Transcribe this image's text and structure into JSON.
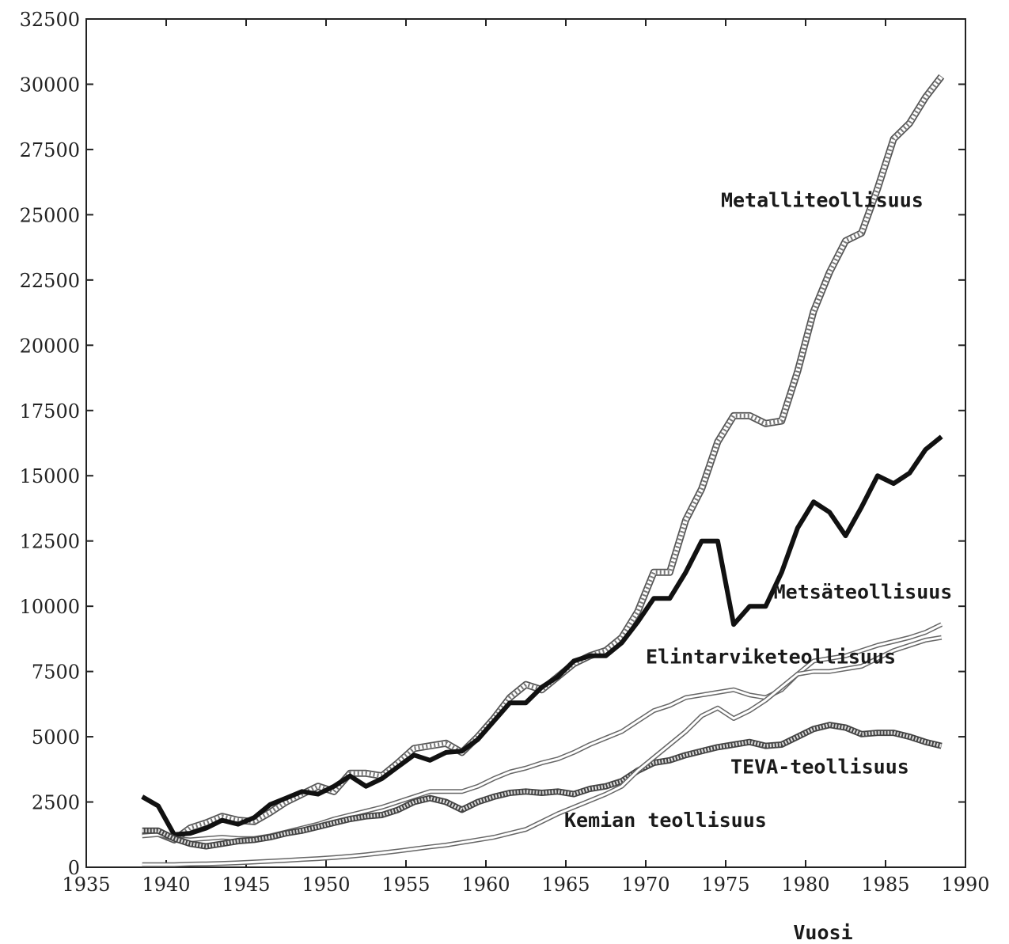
{
  "chart_data": {
    "type": "line",
    "xlabel": "Vuosi",
    "ylabel": "",
    "xlim": [
      1935,
      1990
    ],
    "ylim": [
      0,
      32500
    ],
    "x_ticks": [
      1935,
      1940,
      1945,
      1950,
      1955,
      1960,
      1965,
      1970,
      1975,
      1980,
      1985,
      1990
    ],
    "y_ticks": [
      0,
      2500,
      5000,
      7500,
      10000,
      12500,
      15000,
      17500,
      20000,
      22500,
      25000,
      27500,
      30000,
      32500
    ],
    "grid": false,
    "series": [
      {
        "name": "Metalliteollisuus",
        "style": "hatched",
        "color": "#888888",
        "points": [
          [
            1938.5,
            1350
          ],
          [
            1939.5,
            1300
          ],
          [
            1940.5,
            1050
          ],
          [
            1941.5,
            1500
          ],
          [
            1942.5,
            1700
          ],
          [
            1943.5,
            1950
          ],
          [
            1944.5,
            1800
          ],
          [
            1945.5,
            1750
          ],
          [
            1946.5,
            2100
          ],
          [
            1947.5,
            2500
          ],
          [
            1948.5,
            2800
          ],
          [
            1949.5,
            3100
          ],
          [
            1950.5,
            2900
          ],
          [
            1951.5,
            3600
          ],
          [
            1952.5,
            3600
          ],
          [
            1953.5,
            3500
          ],
          [
            1954.5,
            4000
          ],
          [
            1955.5,
            4550
          ],
          [
            1956.5,
            4650
          ],
          [
            1957.5,
            4750
          ],
          [
            1958.5,
            4400
          ],
          [
            1959.5,
            5000
          ],
          [
            1960.5,
            5700
          ],
          [
            1961.5,
            6500
          ],
          [
            1962.5,
            7000
          ],
          [
            1963.5,
            6800
          ],
          [
            1964.5,
            7300
          ],
          [
            1965.5,
            7800
          ],
          [
            1966.5,
            8100
          ],
          [
            1967.5,
            8300
          ],
          [
            1968.5,
            8800
          ],
          [
            1969.5,
            9800
          ],
          [
            1970.5,
            11300
          ],
          [
            1971.5,
            11300
          ],
          [
            1972.5,
            13300
          ],
          [
            1973.5,
            14500
          ],
          [
            1974.5,
            16300
          ],
          [
            1975.5,
            17300
          ],
          [
            1976.5,
            17300
          ],
          [
            1977.5,
            17000
          ],
          [
            1978.5,
            17100
          ],
          [
            1979.5,
            19000
          ],
          [
            1980.5,
            21300
          ],
          [
            1981.5,
            22800
          ],
          [
            1982.5,
            24000
          ],
          [
            1983.5,
            24300
          ],
          [
            1984.5,
            26000
          ],
          [
            1985.5,
            27900
          ],
          [
            1986.5,
            28500
          ],
          [
            1987.5,
            29500
          ],
          [
            1988.5,
            30300
          ]
        ]
      },
      {
        "name": "Metsäteollisuus",
        "style": "solid",
        "color": "#111111",
        "points": [
          [
            1938.5,
            2700
          ],
          [
            1939.5,
            2350
          ],
          [
            1940.5,
            1250
          ],
          [
            1941.5,
            1300
          ],
          [
            1942.5,
            1500
          ],
          [
            1943.5,
            1800
          ],
          [
            1944.5,
            1650
          ],
          [
            1945.5,
            1900
          ],
          [
            1946.5,
            2400
          ],
          [
            1947.5,
            2650
          ],
          [
            1948.5,
            2900
          ],
          [
            1949.5,
            2800
          ],
          [
            1950.5,
            3100
          ],
          [
            1951.5,
            3500
          ],
          [
            1952.5,
            3100
          ],
          [
            1953.5,
            3400
          ],
          [
            1954.5,
            3850
          ],
          [
            1955.5,
            4300
          ],
          [
            1956.5,
            4100
          ],
          [
            1957.5,
            4400
          ],
          [
            1958.5,
            4450
          ],
          [
            1959.5,
            4900
          ],
          [
            1960.5,
            5600
          ],
          [
            1961.5,
            6300
          ],
          [
            1962.5,
            6300
          ],
          [
            1963.5,
            6900
          ],
          [
            1964.5,
            7300
          ],
          [
            1965.5,
            7900
          ],
          [
            1966.5,
            8100
          ],
          [
            1967.5,
            8100
          ],
          [
            1968.5,
            8600
          ],
          [
            1969.5,
            9400
          ],
          [
            1970.5,
            10300
          ],
          [
            1971.5,
            10300
          ],
          [
            1972.5,
            11300
          ],
          [
            1973.5,
            12500
          ],
          [
            1974.5,
            12500
          ],
          [
            1975.5,
            9300
          ],
          [
            1976.5,
            10000
          ],
          [
            1977.5,
            10000
          ],
          [
            1978.5,
            11300
          ],
          [
            1979.5,
            13000
          ],
          [
            1980.5,
            14000
          ],
          [
            1981.5,
            13600
          ],
          [
            1982.5,
            12700
          ],
          [
            1983.5,
            13800
          ],
          [
            1984.5,
            15000
          ],
          [
            1985.5,
            14700
          ],
          [
            1986.5,
            15100
          ],
          [
            1987.5,
            16000
          ],
          [
            1988.5,
            16500
          ]
        ]
      },
      {
        "name": "Elintarviketeollisuus",
        "style": "double",
        "color": "#999999",
        "points": [
          [
            1938.5,
            1200
          ],
          [
            1939.5,
            1250
          ],
          [
            1940.5,
            1100
          ],
          [
            1941.5,
            1050
          ],
          [
            1942.5,
            1100
          ],
          [
            1943.5,
            1150
          ],
          [
            1944.5,
            1100
          ],
          [
            1945.5,
            1100
          ],
          [
            1946.5,
            1200
          ],
          [
            1947.5,
            1350
          ],
          [
            1948.5,
            1500
          ],
          [
            1949.5,
            1650
          ],
          [
            1950.5,
            1850
          ],
          [
            1951.5,
            2000
          ],
          [
            1952.5,
            2150
          ],
          [
            1953.5,
            2300
          ],
          [
            1954.5,
            2500
          ],
          [
            1955.5,
            2700
          ],
          [
            1956.5,
            2900
          ],
          [
            1957.5,
            2900
          ],
          [
            1958.5,
            2900
          ],
          [
            1959.5,
            3100
          ],
          [
            1960.5,
            3400
          ],
          [
            1961.5,
            3650
          ],
          [
            1962.5,
            3800
          ],
          [
            1963.5,
            4000
          ],
          [
            1964.5,
            4150
          ],
          [
            1965.5,
            4400
          ],
          [
            1966.5,
            4700
          ],
          [
            1967.5,
            4950
          ],
          [
            1968.5,
            5200
          ],
          [
            1969.5,
            5600
          ],
          [
            1970.5,
            6000
          ],
          [
            1971.5,
            6200
          ],
          [
            1972.5,
            6500
          ],
          [
            1973.5,
            6600
          ],
          [
            1974.5,
            6700
          ],
          [
            1975.5,
            6800
          ],
          [
            1976.5,
            6600
          ],
          [
            1977.5,
            6500
          ],
          [
            1978.5,
            6800
          ],
          [
            1979.5,
            7400
          ],
          [
            1980.5,
            7900
          ],
          [
            1981.5,
            8000
          ],
          [
            1982.5,
            8100
          ],
          [
            1983.5,
            8300
          ],
          [
            1984.5,
            8500
          ],
          [
            1985.5,
            8650
          ],
          [
            1986.5,
            8800
          ],
          [
            1987.5,
            9000
          ],
          [
            1988.5,
            9300
          ]
        ]
      },
      {
        "name": "TEVA-teollisuus",
        "style": "checkered",
        "color": "#777777",
        "points": [
          [
            1938.5,
            1400
          ],
          [
            1939.5,
            1400
          ],
          [
            1940.5,
            1100
          ],
          [
            1941.5,
            900
          ],
          [
            1942.5,
            800
          ],
          [
            1943.5,
            900
          ],
          [
            1944.5,
            1000
          ],
          [
            1945.5,
            1050
          ],
          [
            1946.5,
            1150
          ],
          [
            1947.5,
            1300
          ],
          [
            1948.5,
            1400
          ],
          [
            1949.5,
            1550
          ],
          [
            1950.5,
            1700
          ],
          [
            1951.5,
            1850
          ],
          [
            1952.5,
            1950
          ],
          [
            1953.5,
            2000
          ],
          [
            1954.5,
            2200
          ],
          [
            1955.5,
            2500
          ],
          [
            1956.5,
            2650
          ],
          [
            1957.5,
            2500
          ],
          [
            1958.5,
            2200
          ],
          [
            1959.5,
            2500
          ],
          [
            1960.5,
            2700
          ],
          [
            1961.5,
            2850
          ],
          [
            1962.5,
            2900
          ],
          [
            1963.5,
            2850
          ],
          [
            1964.5,
            2900
          ],
          [
            1965.5,
            2800
          ],
          [
            1966.5,
            3000
          ],
          [
            1967.5,
            3100
          ],
          [
            1968.5,
            3300
          ],
          [
            1969.5,
            3700
          ],
          [
            1970.5,
            4000
          ],
          [
            1971.5,
            4100
          ],
          [
            1972.5,
            4300
          ],
          [
            1973.5,
            4450
          ],
          [
            1974.5,
            4600
          ],
          [
            1975.5,
            4700
          ],
          [
            1976.5,
            4800
          ],
          [
            1977.5,
            4650
          ],
          [
            1978.5,
            4700
          ],
          [
            1979.5,
            5000
          ],
          [
            1980.5,
            5300
          ],
          [
            1981.5,
            5450
          ],
          [
            1982.5,
            5350
          ],
          [
            1983.5,
            5100
          ],
          [
            1984.5,
            5150
          ],
          [
            1985.5,
            5150
          ],
          [
            1986.5,
            5000
          ],
          [
            1987.5,
            4800
          ],
          [
            1988.5,
            4650
          ]
        ]
      },
      {
        "name": "Kemian teollisuus",
        "style": "double",
        "color": "#999999",
        "points": [
          [
            1938.5,
            100
          ],
          [
            1939.5,
            100
          ],
          [
            1940.5,
            100
          ],
          [
            1941.5,
            120
          ],
          [
            1942.5,
            130
          ],
          [
            1943.5,
            150
          ],
          [
            1944.5,
            170
          ],
          [
            1945.5,
            200
          ],
          [
            1946.5,
            230
          ],
          [
            1947.5,
            260
          ],
          [
            1948.5,
            300
          ],
          [
            1949.5,
            330
          ],
          [
            1950.5,
            370
          ],
          [
            1951.5,
            420
          ],
          [
            1952.5,
            480
          ],
          [
            1953.5,
            550
          ],
          [
            1954.5,
            620
          ],
          [
            1955.5,
            700
          ],
          [
            1956.5,
            780
          ],
          [
            1957.5,
            850
          ],
          [
            1958.5,
            950
          ],
          [
            1959.5,
            1050
          ],
          [
            1960.5,
            1150
          ],
          [
            1961.5,
            1300
          ],
          [
            1962.5,
            1450
          ],
          [
            1963.5,
            1750
          ],
          [
            1964.5,
            2050
          ],
          [
            1965.5,
            2300
          ],
          [
            1966.5,
            2550
          ],
          [
            1967.5,
            2800
          ],
          [
            1968.5,
            3100
          ],
          [
            1969.5,
            3700
          ],
          [
            1970.5,
            4200
          ],
          [
            1971.5,
            4700
          ],
          [
            1972.5,
            5200
          ],
          [
            1973.5,
            5800
          ],
          [
            1974.5,
            6100
          ],
          [
            1975.5,
            5700
          ],
          [
            1976.5,
            6000
          ],
          [
            1977.5,
            6400
          ],
          [
            1978.5,
            6900
          ],
          [
            1979.5,
            7400
          ],
          [
            1980.5,
            7500
          ],
          [
            1981.5,
            7500
          ],
          [
            1982.5,
            7600
          ],
          [
            1983.5,
            7700
          ],
          [
            1984.5,
            8000
          ],
          [
            1985.5,
            8300
          ],
          [
            1986.5,
            8500
          ],
          [
            1987.5,
            8700
          ],
          [
            1988.5,
            8800
          ]
        ]
      }
    ],
    "annotations": [
      {
        "text": "Metalliteollisuus",
        "x": 1974.7,
        "y": 25300
      },
      {
        "text": "Metsäteollisuus",
        "x": 1978.0,
        "y": 10300
      },
      {
        "text": "Elintarviketeollisuus",
        "x": 1970.0,
        "y": 7800
      },
      {
        "text": "TEVA-teollisuus",
        "x": 1975.3,
        "y": 3600
      },
      {
        "text": "Kemian teollisuus",
        "x": 1964.9,
        "y": 1550
      }
    ]
  }
}
